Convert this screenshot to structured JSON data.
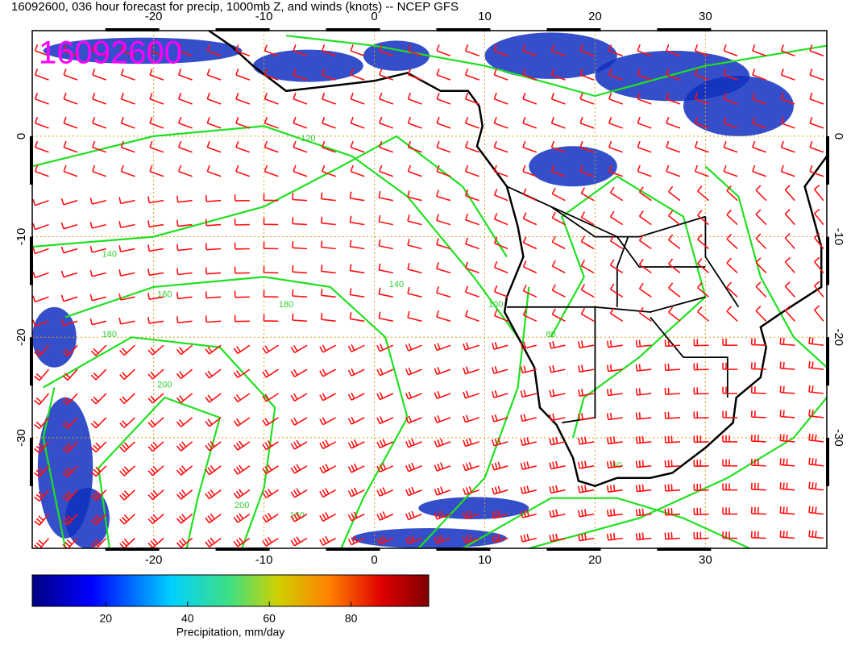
{
  "header": {
    "title": "16092600, 036 hour forecast for precip, 1000mb Z, and winds (knots) -- NCEP GFS"
  },
  "map": {
    "stamp": "16092600",
    "lonlim": [
      -31,
      41
    ],
    "latlim": [
      -41,
      10.5
    ],
    "lonticks": [
      -20,
      -10,
      0,
      10,
      20,
      30
    ],
    "latticks": [
      0,
      -10,
      -20,
      -30
    ],
    "contour_labels": [
      "120",
      "140",
      "140",
      "160",
      "180",
      "180",
      "200",
      "100",
      "80",
      "60",
      "200",
      "160"
    ]
  },
  "colorbar": {
    "label": "Precipitation, mm/day",
    "lim": [
      2,
      99
    ],
    "ticks": [
      20,
      40,
      60,
      80
    ]
  }
}
